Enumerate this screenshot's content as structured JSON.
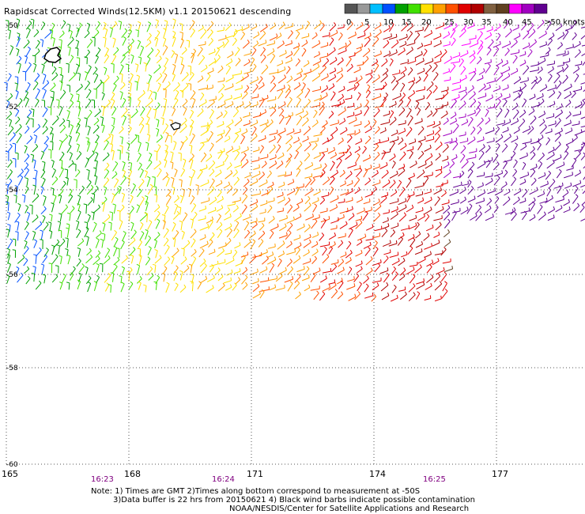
{
  "title": "Rapidscat Corrected Winds(12.5KM) v1.1 20150621 descending",
  "color_scale": {
    "labels": [
      "0",
      "5",
      "10",
      "15",
      "20",
      "25",
      "30",
      "35",
      "40",
      "45",
      ">50 knots"
    ],
    "colors": [
      "#555555",
      "#999999",
      "#00bfff",
      "#0050ff",
      "#00a000",
      "#40e000",
      "#ffe000",
      "#ffa000",
      "#ff5000",
      "#e00000",
      "#b00000",
      "#806040",
      "#604020",
      "#ff00ff",
      "#a000c0",
      "#600090"
    ]
  },
  "axes": {
    "longitude_labels": [
      "165",
      "168",
      "171",
      "174",
      "177"
    ],
    "latitude_labels": [
      "-50",
      "-52",
      "-54",
      "-56",
      "-58",
      "-60"
    ],
    "time_labels": [
      "16:23",
      "16:24",
      "16:25"
    ]
  },
  "notes": [
    "Note: 1) Times are GMT 2)Times along bottom correspond to measurement at -50S",
    "3)Data buffer is 22 hrs from 20150621 4) Black wind barbs indicate possible contamination",
    "NOAA/NESDIS/Center for Satellite Applications and Research"
  ]
}
